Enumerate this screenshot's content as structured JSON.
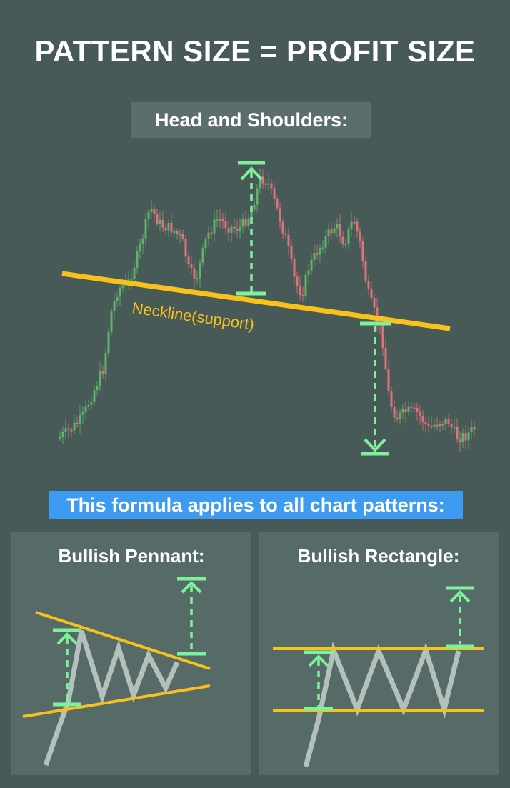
{
  "title": "PATTERN SIZE = PROFIT SIZE",
  "head_and_shoulders": {
    "label": "Head and Shoulders:",
    "neckline_label": "Neckline(support)"
  },
  "formula_banner": "This formula applies to all chart patterns:",
  "panels": {
    "pennant": {
      "title": "Bullish Pennant:"
    },
    "rectangle": {
      "title": "Bullish Rectangle:"
    }
  },
  "colors": {
    "background": "#485a58",
    "panel": "#566a68",
    "label_bg": "#5c6e6c",
    "banner": "#3d9bf2",
    "neckline": "#f8c21b",
    "measure": "#7df29a",
    "bull_candle": "#5fb36a",
    "bear_candle": "#e0737a",
    "price_path": "#b4c0bc"
  }
}
